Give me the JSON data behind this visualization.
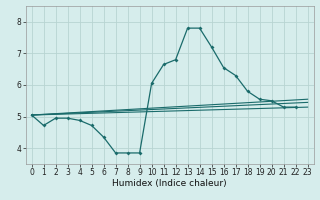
{
  "xlabel": "Humidex (Indice chaleur)",
  "bg_color": "#d6edec",
  "grid_color": "#b8d4d2",
  "line_color": "#1a6b6b",
  "xlim": [
    -0.5,
    23.5
  ],
  "ylim": [
    3.5,
    8.5
  ],
  "yticks": [
    4,
    5,
    6,
    7,
    8
  ],
  "xticks": [
    0,
    1,
    2,
    3,
    4,
    5,
    6,
    7,
    8,
    9,
    10,
    11,
    12,
    13,
    14,
    15,
    16,
    17,
    18,
    19,
    20,
    21,
    22,
    23
  ],
  "main_series": {
    "x": [
      0,
      1,
      2,
      3,
      4,
      5,
      6,
      7,
      8,
      9,
      10,
      11,
      12,
      13,
      14,
      15,
      16,
      17,
      18,
      19,
      20,
      21,
      22
    ],
    "y": [
      5.05,
      4.72,
      4.95,
      4.95,
      4.88,
      4.72,
      4.35,
      3.85,
      3.85,
      3.85,
      6.05,
      6.65,
      6.8,
      7.8,
      7.8,
      7.2,
      6.55,
      6.3,
      5.8,
      5.55,
      5.5,
      5.3,
      5.3
    ]
  },
  "straight_lines": [
    {
      "x": [
        0,
        23
      ],
      "y": [
        5.05,
        5.3
      ]
    },
    {
      "x": [
        0,
        23
      ],
      "y": [
        5.05,
        5.45
      ]
    },
    {
      "x": [
        0,
        23
      ],
      "y": [
        5.05,
        5.55
      ]
    }
  ],
  "xlabel_fontsize": 6.5,
  "tick_fontsize": 5.5
}
